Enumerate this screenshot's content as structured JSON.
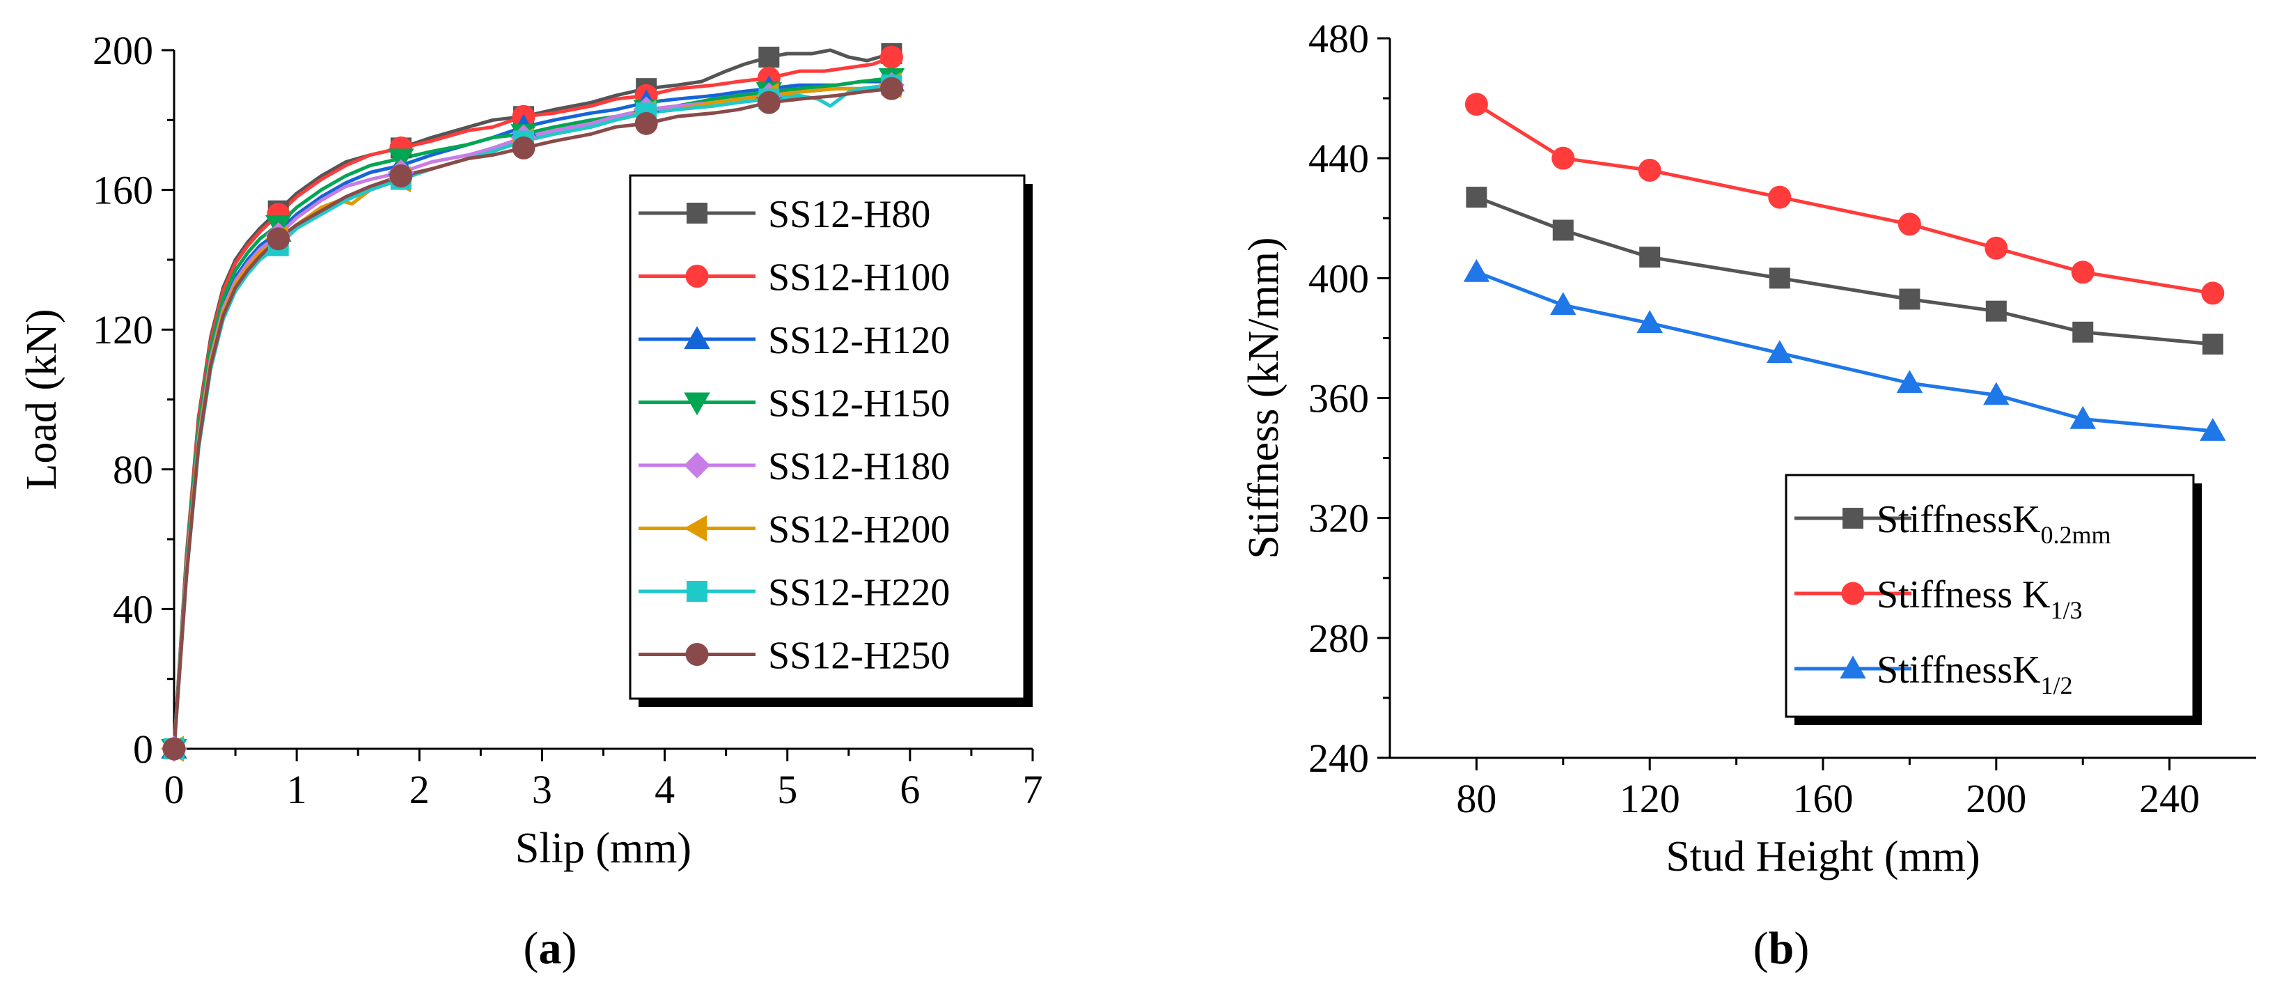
{
  "chart_data": [
    {
      "type": "line",
      "panel_label": "(a)",
      "panel_label_parts": [
        "(",
        "a",
        ")"
      ],
      "xlabel": "Slip (mm)",
      "ylabel": "Load (kN)",
      "xlim": [
        0,
        7
      ],
      "ylim": [
        0,
        200
      ],
      "xticks": [
        0,
        1,
        2,
        3,
        4,
        5,
        6,
        7
      ],
      "yticks": [
        0,
        40,
        80,
        120,
        160,
        200
      ],
      "legend_position": "center-right",
      "marker_x": [
        0,
        0.85,
        1.85,
        2.85,
        3.85,
        4.85,
        5.85
      ],
      "series": [
        {
          "name": "SS12-H80",
          "color": "#555555",
          "marker": "square",
          "x": [
            0,
            0.1,
            0.2,
            0.3,
            0.4,
            0.5,
            0.6,
            0.7,
            0.85,
            1.0,
            1.2,
            1.4,
            1.6,
            1.85,
            2.1,
            2.4,
            2.6,
            2.85,
            3.1,
            3.4,
            3.6,
            3.85,
            4.1,
            4.3,
            4.5,
            4.65,
            4.85,
            5.0,
            5.2,
            5.35,
            5.5,
            5.65,
            5.85
          ],
          "y": [
            0,
            55,
            95,
            118,
            132,
            140,
            145,
            149,
            154,
            159,
            164,
            168,
            170,
            172,
            175,
            178,
            180,
            181,
            183,
            185,
            187,
            189,
            190,
            191,
            194,
            196,
            198,
            199,
            199,
            200,
            198,
            197,
            199
          ]
        },
        {
          "name": "SS12-H100",
          "color": "#ff3b3b",
          "marker": "circle",
          "x": [
            0,
            0.1,
            0.2,
            0.3,
            0.4,
            0.5,
            0.6,
            0.7,
            0.85,
            1.0,
            1.2,
            1.4,
            1.6,
            1.85,
            2.1,
            2.4,
            2.6,
            2.85,
            3.1,
            3.4,
            3.6,
            3.85,
            4.1,
            4.4,
            4.6,
            4.85,
            5.1,
            5.3,
            5.5,
            5.7,
            5.85
          ],
          "y": [
            0,
            54,
            94,
            117,
            131,
            139,
            144,
            148,
            153,
            158,
            163,
            167,
            170,
            172,
            174,
            177,
            178,
            181,
            182,
            184,
            186,
            187,
            189,
            190,
            191,
            192,
            194,
            194,
            195,
            196,
            198
          ]
        },
        {
          "name": "SS12-H120",
          "color": "#1565d8",
          "marker": "triangle-up",
          "x": [
            0,
            0.1,
            0.2,
            0.3,
            0.4,
            0.5,
            0.6,
            0.7,
            0.85,
            1.0,
            1.2,
            1.4,
            1.6,
            1.85,
            2.1,
            2.4,
            2.6,
            2.85,
            3.1,
            3.4,
            3.6,
            3.85,
            4.1,
            4.4,
            4.6,
            4.85,
            5.1,
            5.4,
            5.6,
            5.85
          ],
          "y": [
            0,
            52,
            90,
            113,
            127,
            135,
            140,
            144,
            148,
            153,
            158,
            162,
            165,
            167,
            170,
            173,
            175,
            178,
            180,
            182,
            183,
            185,
            186,
            187,
            188,
            189,
            190,
            190,
            191,
            191
          ]
        },
        {
          "name": "SS12-H150",
          "color": "#00a651",
          "marker": "triangle-down",
          "x": [
            0,
            0.1,
            0.2,
            0.3,
            0.4,
            0.5,
            0.6,
            0.7,
            0.85,
            1.0,
            1.2,
            1.4,
            1.6,
            1.85,
            2.1,
            2.4,
            2.6,
            2.85,
            3.1,
            3.4,
            3.6,
            3.85,
            4.1,
            4.4,
            4.6,
            4.85,
            5.1,
            5.4,
            5.6,
            5.85
          ],
          "y": [
            0,
            53,
            92,
            115,
            129,
            137,
            142,
            146,
            150,
            155,
            160,
            164,
            167,
            169,
            171,
            173,
            175,
            176,
            178,
            180,
            181,
            183,
            184,
            186,
            187,
            188,
            189,
            190,
            191,
            192
          ]
        },
        {
          "name": "SS12-H180",
          "color": "#c77ce8",
          "marker": "diamond",
          "x": [
            0,
            0.1,
            0.2,
            0.3,
            0.4,
            0.5,
            0.6,
            0.7,
            0.85,
            1.0,
            1.2,
            1.4,
            1.6,
            1.85,
            2.1,
            2.4,
            2.6,
            2.85,
            3.1,
            3.4,
            3.6,
            3.85,
            4.1,
            4.4,
            4.6,
            4.85,
            5.1,
            5.4,
            5.6,
            5.85
          ],
          "y": [
            0,
            51,
            89,
            112,
            126,
            134,
            139,
            143,
            147,
            152,
            157,
            161,
            163,
            165,
            168,
            170,
            172,
            175,
            177,
            179,
            181,
            183,
            184,
            185,
            186,
            187,
            188,
            189,
            189,
            190
          ]
        },
        {
          "name": "SS12-H200",
          "color": "#e09a00",
          "marker": "triangle-left",
          "x": [
            0,
            0.1,
            0.2,
            0.3,
            0.4,
            0.5,
            0.6,
            0.7,
            0.85,
            1.0,
            1.2,
            1.35,
            1.45,
            1.6,
            1.85,
            2.1,
            2.4,
            2.6,
            2.85,
            3.1,
            3.4,
            3.6,
            3.85,
            4.1,
            4.4,
            4.6,
            4.85,
            5.1,
            5.4,
            5.6,
            5.85
          ],
          "y": [
            0,
            50,
            88,
            111,
            125,
            133,
            138,
            142,
            146,
            150,
            155,
            157,
            156,
            160,
            163,
            166,
            169,
            171,
            174,
            176,
            178,
            180,
            182,
            183,
            185,
            186,
            187,
            188,
            189,
            189,
            190
          ]
        },
        {
          "name": "SS12-H220",
          "color": "#1fc9c9",
          "marker": "square",
          "x": [
            0,
            0.1,
            0.2,
            0.3,
            0.4,
            0.5,
            0.6,
            0.7,
            0.85,
            1.0,
            1.2,
            1.4,
            1.6,
            1.85,
            2.1,
            2.4,
            2.6,
            2.85,
            3.1,
            3.4,
            3.6,
            3.85,
            4.1,
            4.4,
            4.6,
            4.85,
            5.1,
            5.25,
            5.35,
            5.5,
            5.6,
            5.85
          ],
          "y": [
            0,
            49,
            86,
            109,
            123,
            131,
            136,
            140,
            144,
            149,
            153,
            157,
            160,
            163,
            166,
            169,
            171,
            174,
            176,
            178,
            180,
            182,
            183,
            184,
            185,
            186,
            187,
            186,
            184,
            188,
            189,
            190
          ]
        },
        {
          "name": "SS12-H250",
          "color": "#8b4a4a",
          "marker": "circle",
          "x": [
            0,
            0.1,
            0.2,
            0.3,
            0.4,
            0.5,
            0.6,
            0.7,
            0.85,
            1.0,
            1.2,
            1.4,
            1.6,
            1.85,
            2.1,
            2.4,
            2.6,
            2.85,
            3.1,
            3.4,
            3.6,
            3.85,
            4.1,
            4.4,
            4.6,
            4.85,
            5.1,
            5.4,
            5.6,
            5.85
          ],
          "y": [
            0,
            49,
            87,
            110,
            124,
            132,
            137,
            141,
            146,
            150,
            154,
            158,
            161,
            164,
            166,
            169,
            170,
            172,
            174,
            176,
            178,
            179,
            181,
            182,
            183,
            185,
            186,
            187,
            188,
            189
          ]
        }
      ]
    },
    {
      "type": "line",
      "panel_label": "(b)",
      "panel_label_parts": [
        "(",
        "b",
        ")"
      ],
      "xlabel": "Stud Height (mm)",
      "ylabel": "Stiffness (kN/mm)",
      "xlim": [
        60,
        260
      ],
      "ylim": [
        240,
        480
      ],
      "xticks": [
        80,
        120,
        160,
        200,
        240
      ],
      "yticks": [
        240,
        280,
        320,
        360,
        400,
        440,
        480
      ],
      "legend_position": "bottom-right",
      "x": [
        80,
        100,
        120,
        150,
        180,
        200,
        220,
        250
      ],
      "series": [
        {
          "name": "StiffnessK0.2mm",
          "legend_main": "StiffnessK",
          "legend_sub": "0.2mm",
          "color": "#555555",
          "marker": "square",
          "values": [
            427,
            416,
            407,
            400,
            393,
            389,
            382,
            378
          ]
        },
        {
          "name": "Stiffness K1/3",
          "legend_main": "Stiffness K",
          "legend_sub": "1/3",
          "color": "#ff3b3b",
          "marker": "circle",
          "values": [
            458,
            440,
            436,
            427,
            418,
            410,
            402,
            395
          ]
        },
        {
          "name": "StiffnessK1/2",
          "legend_main": "StiffnessK",
          "legend_sub": "1/2",
          "color": "#1f77e8",
          "marker": "triangle-up",
          "values": [
            402,
            391,
            385,
            375,
            365,
            361,
            353,
            349
          ]
        }
      ]
    }
  ]
}
